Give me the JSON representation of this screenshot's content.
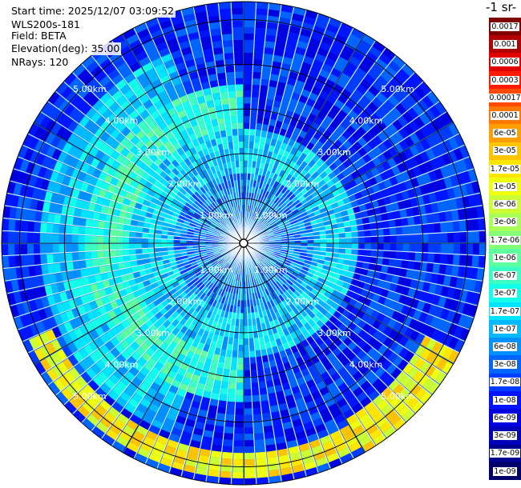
{
  "info": {
    "start_time": "Start time: 2025/12/07 03:09:52",
    "instrument": "WLS200s-181",
    "field": "Field: BETA",
    "elevation": "Elevation(deg): 35.00",
    "nrays": "NRays: 120"
  },
  "colorbar": {
    "units_label": "-1 sr-",
    "labels": [
      "0.0017",
      "0.001",
      "0.0006",
      "0.0003",
      "0.00017",
      "0.0001",
      "6e-05",
      "3e-05",
      "1.7e-05",
      "1e-05",
      "6e-06",
      "3e-06",
      "1.7e-06",
      "1e-06",
      "6e-07",
      "3e-07",
      "1.7e-07",
      "1e-07",
      "6e-08",
      "3e-08",
      "1.7e-08",
      "1e-08",
      "6e-09",
      "3e-09",
      "1.7e-09",
      "1e-09"
    ],
    "colors": [
      "#800000",
      "#b00000",
      "#e00000",
      "#ff1a00",
      "#ff4a00",
      "#ff7800",
      "#ff9e00",
      "#ffc400",
      "#ffe600",
      "#eeff10",
      "#ccff33",
      "#a8ff55",
      "#86ff78",
      "#60ff9e",
      "#3cffc4",
      "#14ffea",
      "#00e4ff",
      "#00baff",
      "#0090ff",
      "#0066ff",
      "#003cff",
      "#0014ff",
      "#0000e0",
      "#0000b8",
      "#000090",
      "#000068"
    ]
  },
  "chart_data": {
    "type": "heatmap",
    "projection": "polar-ppi",
    "n_rays": 120,
    "elevation_deg": 35.0,
    "range_max_km": 5.4,
    "range_rings_km": [
      1,
      2,
      3,
      4,
      5
    ],
    "ring_labels": [
      "1.00km",
      "2.00km",
      "3.00km",
      "4.00km",
      "5.00km"
    ],
    "regions": [
      {
        "range_km": [
          0.0,
          1.5
        ],
        "az_deg": [
          0,
          360
        ],
        "level": "3e-08"
      },
      {
        "range_km": [
          1.5,
          2.5
        ],
        "az_deg": [
          0,
          360
        ],
        "level": "1e-07"
      },
      {
        "range_km": [
          2.5,
          3.5
        ],
        "az_deg": [
          180,
          360
        ],
        "level": "3e-07"
      },
      {
        "range_km": [
          3.5,
          4.5
        ],
        "az_deg": [
          200,
          340
        ],
        "level": "1e-07"
      },
      {
        "range_km": [
          4.7,
          5.3
        ],
        "az_deg": [
          150,
          245
        ],
        "level": "1e-05"
      },
      {
        "range_km": [
          4.5,
          5.4
        ],
        "az_deg": [
          118,
          150
        ],
        "level": "1e-05"
      },
      {
        "range_km": [
          4.8,
          5.4
        ],
        "az_deg": [
          200,
          240
        ],
        "level": "1e-04"
      }
    ]
  }
}
